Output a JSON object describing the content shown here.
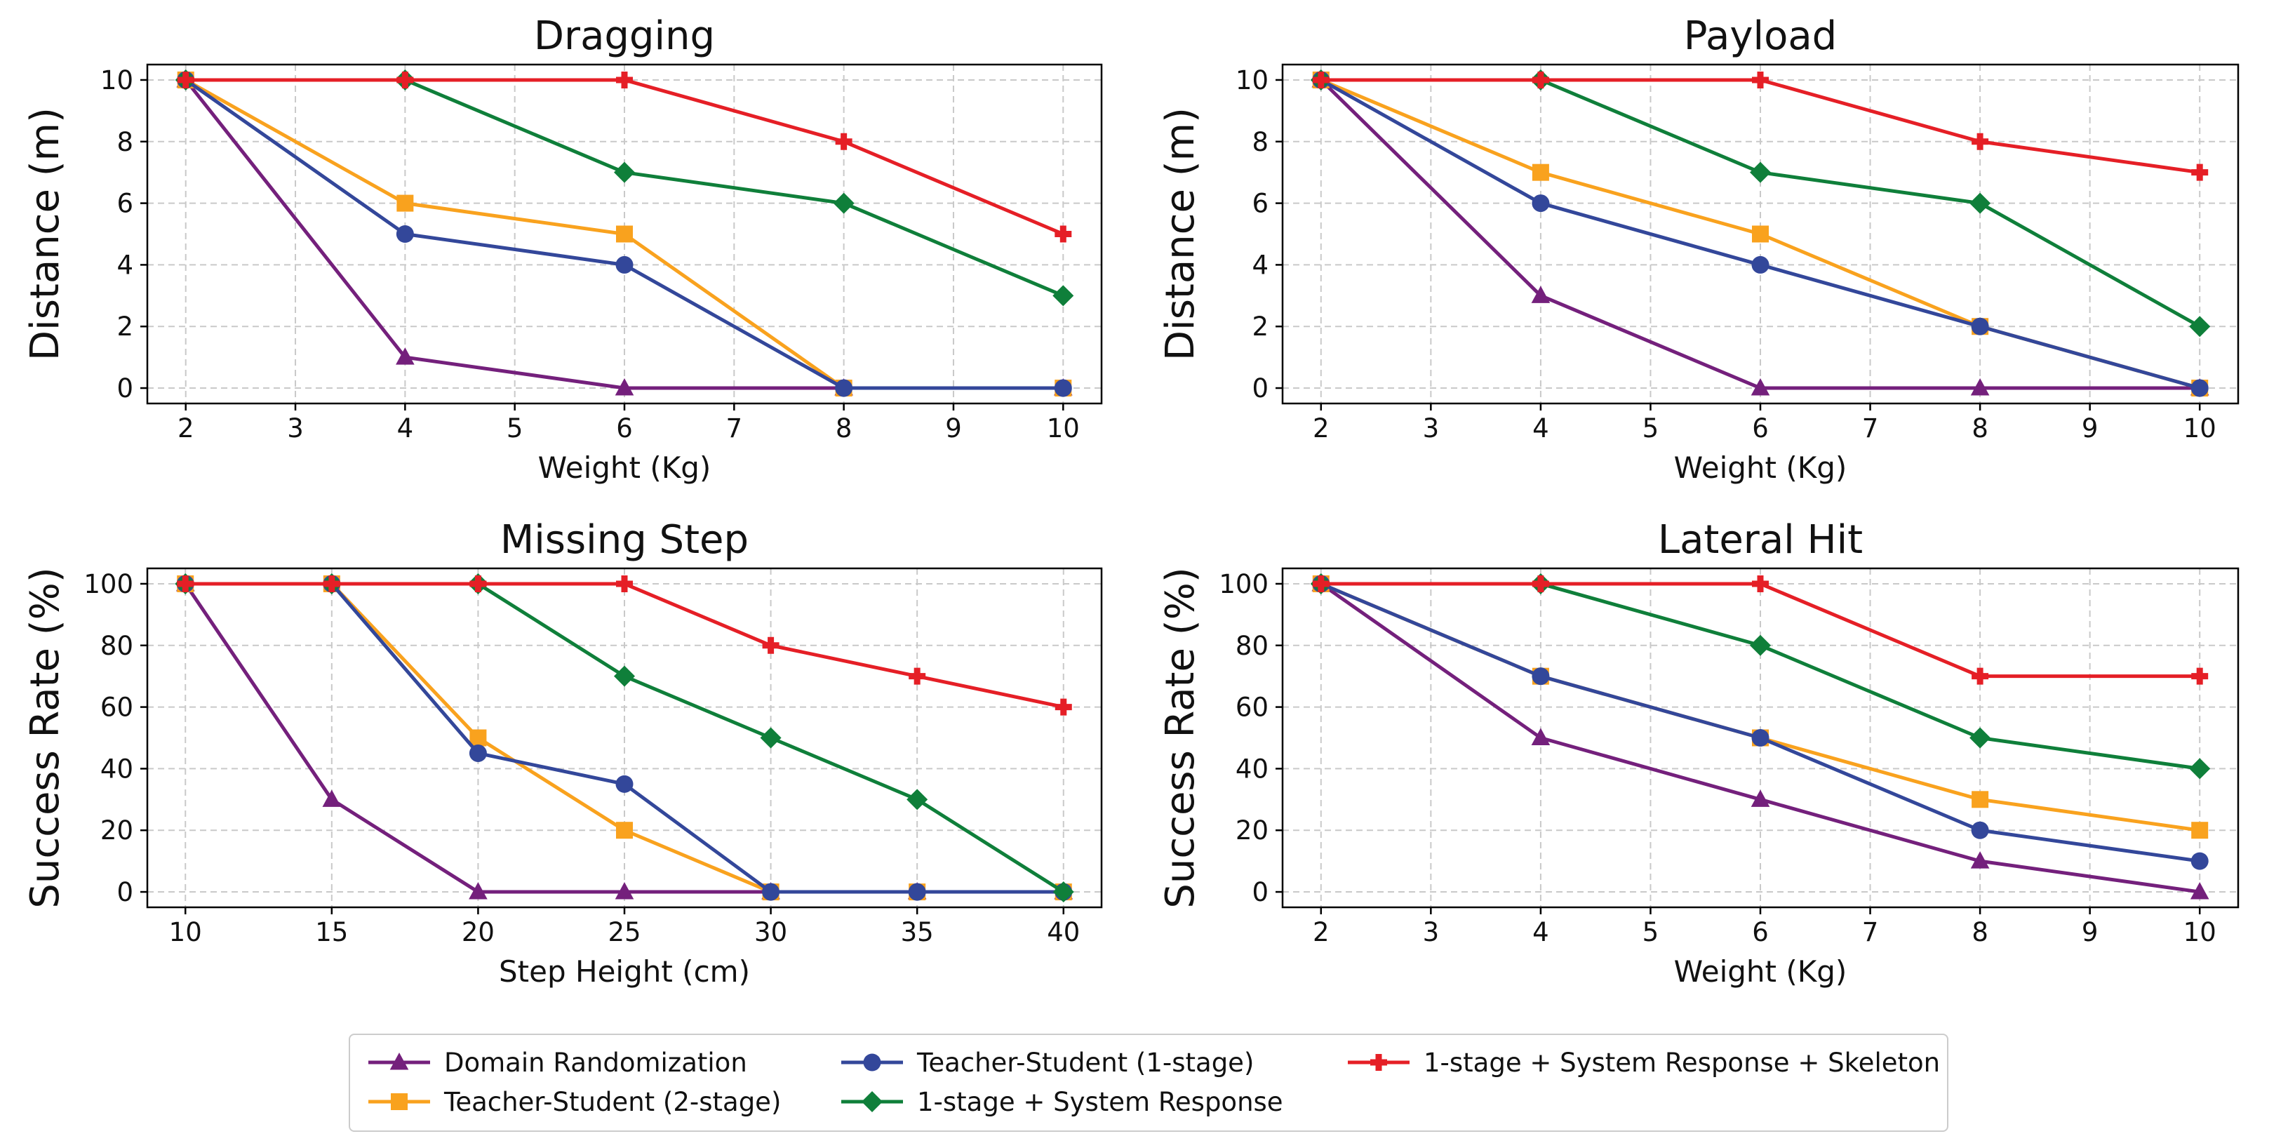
{
  "chart_data": [
    {
      "type": "line",
      "title": "Dragging",
      "xlabel": "Weight (Kg)",
      "ylabel": "Distance (m)",
      "xlim": [
        1.65,
        10.35
      ],
      "ylim": [
        -0.5,
        10.5
      ],
      "xticks": [
        "2",
        "3",
        "4",
        "5",
        "6",
        "7",
        "8",
        "9",
        "10"
      ],
      "yticks": [
        "0",
        "2",
        "4",
        "6",
        "8",
        "10"
      ],
      "grid": true,
      "x": [
        2,
        4,
        6,
        8,
        10
      ],
      "series": [
        {
          "name": "Domain Randomization",
          "values": [
            10,
            1,
            0,
            0,
            0
          ]
        },
        {
          "name": "Teacher-Student (2-stage)",
          "values": [
            10,
            6,
            5,
            0,
            0
          ]
        },
        {
          "name": "Teacher-Student (1-stage)",
          "values": [
            10,
            5,
            4,
            0,
            0
          ]
        },
        {
          "name": "1-stage + System Response",
          "values": [
            10,
            10,
            7,
            6,
            3
          ]
        },
        {
          "name": "1-stage + System Response + Skeleton",
          "values": [
            10,
            10,
            10,
            8,
            5
          ]
        }
      ]
    },
    {
      "type": "line",
      "title": "Payload",
      "xlabel": "Weight (Kg)",
      "ylabel": "Distance (m)",
      "xlim": [
        1.65,
        10.35
      ],
      "ylim": [
        -0.5,
        10.5
      ],
      "xticks": [
        "2",
        "3",
        "4",
        "5",
        "6",
        "7",
        "8",
        "9",
        "10"
      ],
      "yticks": [
        "0",
        "2",
        "4",
        "6",
        "8",
        "10"
      ],
      "grid": true,
      "x": [
        2,
        4,
        6,
        8,
        10
      ],
      "series": [
        {
          "name": "Domain Randomization",
          "values": [
            10,
            3,
            0,
            0,
            0
          ]
        },
        {
          "name": "Teacher-Student (2-stage)",
          "values": [
            10,
            7,
            5,
            2,
            0
          ]
        },
        {
          "name": "Teacher-Student (1-stage)",
          "values": [
            10,
            6,
            4,
            2,
            0
          ]
        },
        {
          "name": "1-stage + System Response",
          "values": [
            10,
            10,
            7,
            6,
            2
          ]
        },
        {
          "name": "1-stage + System Response + Skeleton",
          "values": [
            10,
            10,
            10,
            8,
            7
          ]
        }
      ]
    },
    {
      "type": "line",
      "title": "Missing Step",
      "xlabel": "Step Height (cm)",
      "ylabel": "Success Rate (%)",
      "xlim": [
        8.7,
        41.3
      ],
      "ylim": [
        -5,
        105
      ],
      "xticks": [
        "10",
        "15",
        "20",
        "25",
        "30",
        "35",
        "40"
      ],
      "yticks": [
        "0",
        "20",
        "40",
        "60",
        "80",
        "100"
      ],
      "grid": true,
      "x": [
        10,
        15,
        20,
        25,
        30,
        35,
        40
      ],
      "series": [
        {
          "name": "Domain Randomization",
          "values": [
            100,
            30,
            0,
            0,
            0,
            0,
            0
          ]
        },
        {
          "name": "Teacher-Student (2-stage)",
          "values": [
            100,
            100,
            50,
            20,
            0,
            0,
            0
          ]
        },
        {
          "name": "Teacher-Student (1-stage)",
          "values": [
            100,
            100,
            45,
            35,
            0,
            0,
            0
          ]
        },
        {
          "name": "1-stage + System Response",
          "values": [
            100,
            100,
            100,
            70,
            50,
            30,
            0
          ]
        },
        {
          "name": "1-stage + System Response + Skeleton",
          "values": [
            100,
            100,
            100,
            100,
            80,
            70,
            60
          ]
        }
      ]
    },
    {
      "type": "line",
      "title": "Lateral Hit",
      "xlabel": "Weight (Kg)",
      "ylabel": "Success Rate (%)",
      "xlim": [
        1.65,
        10.35
      ],
      "ylim": [
        -5,
        105
      ],
      "xticks": [
        "2",
        "3",
        "4",
        "5",
        "6",
        "7",
        "8",
        "9",
        "10"
      ],
      "yticks": [
        "0",
        "20",
        "40",
        "60",
        "80",
        "100"
      ],
      "grid": true,
      "x": [
        2,
        4,
        6,
        8,
        10
      ],
      "series": [
        {
          "name": "Domain Randomization",
          "values": [
            100,
            50,
            30,
            10,
            0
          ]
        },
        {
          "name": "Teacher-Student (2-stage)",
          "values": [
            100,
            70,
            50,
            30,
            20
          ]
        },
        {
          "name": "Teacher-Student (1-stage)",
          "values": [
            100,
            70,
            50,
            20,
            10
          ]
        },
        {
          "name": "1-stage + System Response",
          "values": [
            100,
            100,
            80,
            50,
            40
          ]
        },
        {
          "name": "1-stage + System Response + Skeleton",
          "values": [
            100,
            100,
            100,
            70,
            70
          ]
        }
      ]
    }
  ],
  "legend": {
    "placement": "bottom-center",
    "entries": [
      {
        "label": "Domain Randomization",
        "color": "#74207c",
        "marker": "triangle"
      },
      {
        "label": "Teacher-Student (2-stage)",
        "color": "#f9a21e",
        "marker": "square"
      },
      {
        "label": "Teacher-Student (1-stage)",
        "color": "#33479a",
        "marker": "circle"
      },
      {
        "label": "1-stage + System Response",
        "color": "#0f7f3a",
        "marker": "diamond"
      },
      {
        "label": "1-stage + System Response + Skeleton",
        "color": "#e51f26",
        "marker": "plus"
      }
    ]
  }
}
